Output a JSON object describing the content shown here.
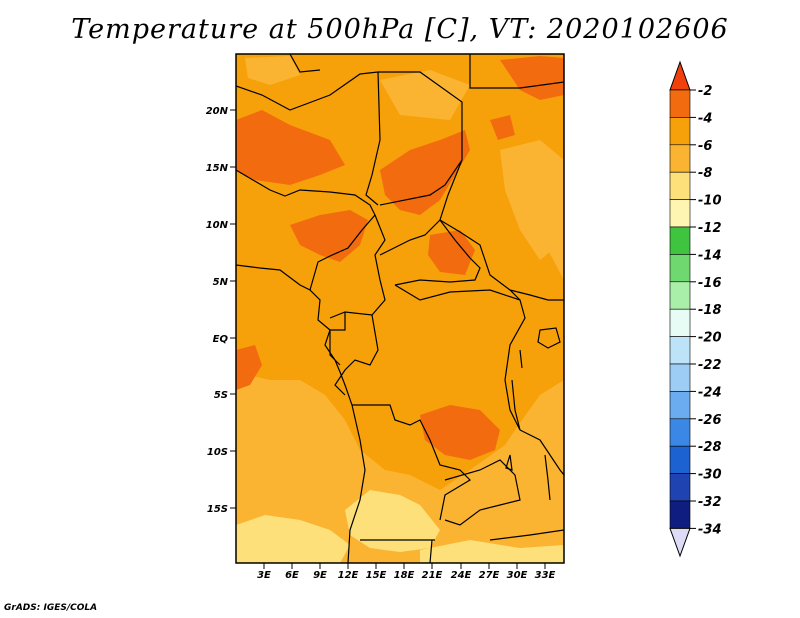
{
  "title": "Temperature at 500hPa [C], VT: 2020102606",
  "credit": "GrADS: IGES/COLA",
  "map": {
    "lat_labels": [
      "20N",
      "15N",
      "10N",
      "5N",
      "EQ",
      "5S",
      "10S",
      "15S"
    ],
    "lon_labels": [
      "3E",
      "6E",
      "9E",
      "12E",
      "15E",
      "18E",
      "21E",
      "24E",
      "27E",
      "30E",
      "33E"
    ],
    "field_colors": {
      "t_-2_-4": "#f26b0f",
      "t_-4_-6": "#f7a10a",
      "t_-6_-8": "#fbb431",
      "t_-8_-10": "#fde07a"
    }
  },
  "colorbar": {
    "labels": [
      "-2",
      "-4",
      "-6",
      "-8",
      "-10",
      "-12",
      "-14",
      "-16",
      "-18",
      "-20",
      "-22",
      "-24",
      "-26",
      "-28",
      "-30",
      "-32",
      "-34"
    ],
    "colors": [
      "#f0400c",
      "#f26b0f",
      "#f7a10a",
      "#fbb431",
      "#fde07a",
      "#fff5b2",
      "#3fc43f",
      "#6fd96f",
      "#a9eea9",
      "#e8fcf6",
      "#bde3f8",
      "#9dcdf5",
      "#6aacef",
      "#3b87e6",
      "#1d62d1",
      "#1f43b1",
      "#0f1c80",
      "#dcdcf6"
    ]
  }
}
